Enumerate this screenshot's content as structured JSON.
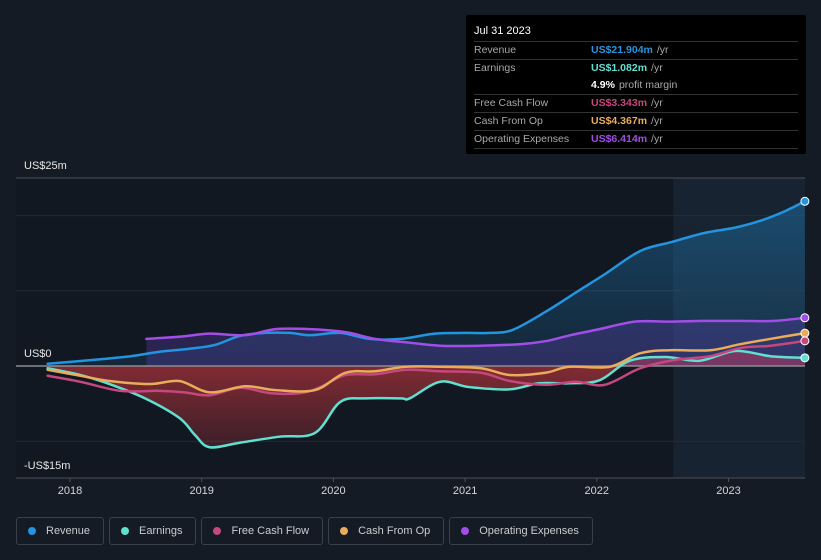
{
  "tooltip": {
    "date": "Jul 31 2023",
    "rows": [
      {
        "label": "Revenue",
        "value": "US$21.904m",
        "suffix": "/yr",
        "color": "#2394df"
      },
      {
        "label": "Earnings",
        "value": "US$1.082m",
        "suffix": "/yr",
        "color": "#5fe0d0"
      },
      {
        "label": "",
        "value": "4.9%",
        "suffix": "profit margin",
        "color": "#ffffff"
      },
      {
        "label": "Free Cash Flow",
        "value": "US$3.343m",
        "suffix": "/yr",
        "color": "#c5477f"
      },
      {
        "label": "Cash From Op",
        "value": "US$4.367m",
        "suffix": "/yr",
        "color": "#e8ac5a"
      },
      {
        "label": "Operating Expenses",
        "value": "US$6.414m",
        "suffix": "/yr",
        "color": "#a24de8"
      }
    ]
  },
  "legend": [
    {
      "label": "Revenue",
      "color": "#2394df"
    },
    {
      "label": "Earnings",
      "color": "#5fe0d0"
    },
    {
      "label": "Free Cash Flow",
      "color": "#c5477f"
    },
    {
      "label": "Cash From Op",
      "color": "#e8ac5a"
    },
    {
      "label": "Operating Expenses",
      "color": "#a24de8"
    }
  ],
  "chart_data": {
    "type": "line",
    "title": "",
    "xlabel": "",
    "ylabel": "",
    "y_axis_labels": {
      "top": "US$25m",
      "zero": "US$0",
      "bottom": "-US$15m"
    },
    "ylim": [
      -15,
      25
    ],
    "xlim": [
      2017.83,
      2023.58
    ],
    "x_ticks": [
      "2018",
      "2019",
      "2020",
      "2021",
      "2022",
      "2023"
    ],
    "x_tick_values": [
      2018,
      2019,
      2020,
      2021,
      2022,
      2023
    ],
    "highlight_start": 2022.58,
    "grid": true,
    "legend_position": "bottom",
    "series": [
      {
        "name": "Revenue",
        "color": "#2394df",
        "x": [
          2017.83,
          2018.23,
          2018.46,
          2018.68,
          2018.91,
          2019.1,
          2019.29,
          2019.48,
          2019.67,
          2019.82,
          2020.05,
          2020.28,
          2020.51,
          2020.77,
          2021.0,
          2021.19,
          2021.36,
          2021.61,
          2021.87,
          2022.06,
          2022.33,
          2022.57,
          2022.82,
          2023.05,
          2023.24,
          2023.43,
          2023.58
        ],
        "values": [
          0.3,
          0.9,
          1.3,
          1.9,
          2.3,
          2.8,
          4.0,
          4.4,
          4.4,
          4.1,
          4.4,
          3.6,
          3.6,
          4.3,
          4.4,
          4.4,
          4.8,
          7.2,
          10.1,
          12.2,
          15.3,
          16.5,
          17.7,
          18.4,
          19.3,
          20.6,
          21.904
        ]
      },
      {
        "name": "Earnings",
        "color": "#5fe0d0",
        "x": [
          2017.83,
          2018.08,
          2018.3,
          2018.57,
          2018.83,
          2018.95,
          2019.06,
          2019.29,
          2019.59,
          2019.86,
          2020.05,
          2020.24,
          2020.51,
          2020.58,
          2020.81,
          2021.03,
          2021.34,
          2021.56,
          2021.79,
          2022.02,
          2022.25,
          2022.52,
          2022.78,
          2023.05,
          2023.32,
          2023.58
        ],
        "values": [
          -0.3,
          -1.2,
          -2.4,
          -4.3,
          -6.9,
          -9.2,
          -10.8,
          -10.2,
          -9.4,
          -8.9,
          -4.8,
          -4.3,
          -4.3,
          -4.3,
          -2.1,
          -2.8,
          -3.1,
          -2.3,
          -2.3,
          -1.9,
          0.7,
          1.2,
          0.7,
          2.0,
          1.3,
          1.082
        ]
      },
      {
        "name": "Free Cash Flow",
        "color": "#c5477f",
        "x": [
          2017.83,
          2018.08,
          2018.38,
          2018.68,
          2018.87,
          2019.06,
          2019.29,
          2019.52,
          2019.75,
          2019.9,
          2020.09,
          2020.32,
          2020.55,
          2020.81,
          2021.12,
          2021.34,
          2021.61,
          2021.84,
          2022.06,
          2022.33,
          2022.59,
          2022.86,
          2023.09,
          2023.32,
          2023.58
        ],
        "values": [
          -1.3,
          -2.1,
          -3.3,
          -3.3,
          -3.5,
          -3.9,
          -2.9,
          -3.6,
          -3.6,
          -2.8,
          -1.2,
          -1.1,
          -0.5,
          -0.7,
          -0.9,
          -2.0,
          -2.5,
          -2.1,
          -2.5,
          -0.3,
          0.8,
          1.3,
          2.4,
          2.7,
          3.343
        ]
      },
      {
        "name": "Cash From Op",
        "color": "#e8ac5a",
        "x": [
          2017.83,
          2018.08,
          2018.3,
          2018.61,
          2018.83,
          2019.06,
          2019.33,
          2019.56,
          2019.86,
          2020.09,
          2020.32,
          2020.55,
          2020.81,
          2021.12,
          2021.34,
          2021.61,
          2021.79,
          2022.1,
          2022.33,
          2022.55,
          2022.86,
          2023.09,
          2023.35,
          2023.58
        ],
        "values": [
          -0.5,
          -1.3,
          -2.0,
          -2.4,
          -2.0,
          -3.5,
          -2.7,
          -3.2,
          -3.2,
          -0.9,
          -0.7,
          -0.1,
          -0.1,
          -0.3,
          -1.2,
          -0.9,
          -0.1,
          -0.1,
          1.7,
          2.1,
          2.1,
          2.9,
          3.7,
          4.367
        ]
      },
      {
        "name": "Operating Expenses",
        "color": "#a24de8",
        "x": [
          2018.58,
          2018.84,
          2019.06,
          2019.33,
          2019.56,
          2019.82,
          2020.09,
          2020.32,
          2020.58,
          2020.81,
          2021.11,
          2021.41,
          2021.61,
          2021.8,
          2022.02,
          2022.29,
          2022.56,
          2022.82,
          2023.09,
          2023.35,
          2023.58
        ],
        "values": [
          3.6,
          3.9,
          4.3,
          4.1,
          4.9,
          4.9,
          4.5,
          3.6,
          3.1,
          2.7,
          2.7,
          2.9,
          3.3,
          4.1,
          4.9,
          5.9,
          5.9,
          6.0,
          6.0,
          6.0,
          6.414
        ]
      }
    ]
  }
}
